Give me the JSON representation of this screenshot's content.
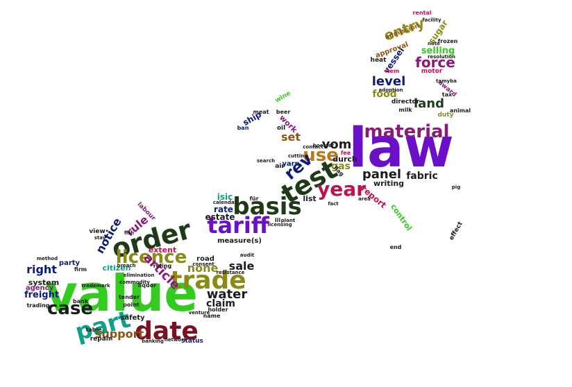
{
  "colors": {
    "green": "#33cc1e",
    "purple": "#6a10c8",
    "dark_green": "#1f3a17",
    "olive": "#8a8a14",
    "navy": "#0e1a78",
    "magenta": "#8a1a78",
    "crimson": "#c0114f",
    "teal": "#0fa08a",
    "brown": "#8a5410",
    "maroon": "#7a1020",
    "dark": "#1c1c1c",
    "blue": "#2a3acc",
    "orange": "#b8781e"
  },
  "words": [
    {
      "text": "value",
      "color": "green"
    },
    {
      "text": "law",
      "color": "purple"
    },
    {
      "text": "tariff",
      "color": "purple"
    },
    {
      "text": "basis",
      "color": "dark_green"
    },
    {
      "text": "test",
      "color": "dark_green"
    },
    {
      "text": "order",
      "color": "dark_green"
    },
    {
      "text": "date",
      "color": "maroon"
    },
    {
      "text": "part",
      "color": "teal"
    },
    {
      "text": "trade",
      "color": "olive"
    },
    {
      "text": "material",
      "color": "magenta"
    },
    {
      "text": "licence",
      "color": "olive"
    },
    {
      "text": "case",
      "color": "dark"
    },
    {
      "text": "year",
      "color": "crimson"
    },
    {
      "text": "use",
      "color": "orange"
    },
    {
      "text": "rev",
      "color": "navy"
    },
    {
      "text": "article",
      "color": "magenta"
    },
    {
      "text": "entry",
      "color": "olive"
    },
    {
      "text": "force",
      "color": "magenta"
    },
    {
      "text": "panel",
      "color": "dark"
    },
    {
      "text": "vom",
      "color": "dark"
    },
    {
      "text": "land",
      "color": "dark_green"
    },
    {
      "text": "level",
      "color": "navy"
    },
    {
      "text": "water",
      "color": "dark"
    },
    {
      "text": "right",
      "color": "navy"
    },
    {
      "text": "rule",
      "color": "magenta"
    },
    {
      "text": "notice",
      "color": "navy"
    },
    {
      "text": "support",
      "color": "brown"
    },
    {
      "text": "none",
      "color": "olive"
    },
    {
      "text": "sale",
      "color": "dark"
    },
    {
      "text": "claim",
      "color": "dark"
    },
    {
      "text": "gas",
      "color": "olive"
    },
    {
      "text": "set",
      "color": "brown"
    },
    {
      "text": "fabric",
      "color": "dark"
    },
    {
      "text": "food",
      "color": "olive"
    },
    {
      "text": "selling",
      "color": "green"
    },
    {
      "text": "freight",
      "color": "navy"
    },
    {
      "text": "vessel",
      "color": "navy"
    },
    {
      "text": "sugar",
      "color": "olive"
    },
    {
      "text": "report",
      "color": "crimson"
    },
    {
      "text": "rate",
      "color": "navy"
    },
    {
      "text": "extent",
      "color": "crimson"
    },
    {
      "text": "citizen",
      "color": "teal"
    },
    {
      "text": "system",
      "color": "dark"
    },
    {
      "text": "agency",
      "color": "magenta"
    },
    {
      "text": "party",
      "color": "navy"
    },
    {
      "text": "ship",
      "color": "navy"
    },
    {
      "text": "work",
      "color": "magenta"
    },
    {
      "text": "isic",
      "color": "teal"
    },
    {
      "text": "estate",
      "color": "dark"
    },
    {
      "text": "writing",
      "color": "dark"
    },
    {
      "text": "list",
      "color": "dark"
    },
    {
      "text": "durch",
      "color": "dark"
    },
    {
      "text": "yarn",
      "color": "navy"
    },
    {
      "text": "approval",
      "color": "brown"
    },
    {
      "text": "admission",
      "color": "brown"
    },
    {
      "text": "heat",
      "color": "dark"
    },
    {
      "text": "safety",
      "color": "dark"
    },
    {
      "text": "measure(s)",
      "color": "dark"
    },
    {
      "text": "road",
      "color": "dark"
    },
    {
      "text": "labour",
      "color": "magenta"
    },
    {
      "text": "award",
      "color": "magenta"
    },
    {
      "text": "director",
      "color": "dark"
    },
    {
      "text": "repair",
      "color": "dark"
    },
    {
      "text": "status",
      "color": "navy"
    },
    {
      "text": "control",
      "color": "green"
    },
    {
      "text": "effect",
      "color": "dark"
    },
    {
      "text": "wine",
      "color": "green"
    },
    {
      "text": "oil",
      "color": "dark"
    },
    {
      "text": "air",
      "color": "dark"
    },
    {
      "text": "motor",
      "color": "crimson"
    },
    {
      "text": "duty",
      "color": "olive"
    },
    {
      "text": "view",
      "color": "dark"
    },
    {
      "text": "tender",
      "color": "dark"
    },
    {
      "text": "liquor",
      "color": "dark"
    },
    {
      "text": "ruling",
      "color": "dark"
    },
    {
      "text": "holder",
      "color": "dark"
    },
    {
      "text": "name",
      "color": "dark"
    },
    {
      "text": "point",
      "color": "dark"
    },
    {
      "text": "trading",
      "color": "dark"
    },
    {
      "text": "flag",
      "color": "dark"
    },
    {
      "text": "meat",
      "color": "dark"
    },
    {
      "text": "ban",
      "color": "navy"
    },
    {
      "text": "milk",
      "color": "dark"
    },
    {
      "text": "animal",
      "color": "dark"
    },
    {
      "text": "item",
      "color": "crimson"
    },
    {
      "text": "rental",
      "color": "crimson"
    },
    {
      "text": "iii",
      "color": "dark"
    },
    {
      "text": "für",
      "color": "dark"
    },
    {
      "text": "end",
      "color": "dark"
    },
    {
      "text": "frozen",
      "color": "dark"
    },
    {
      "text": "fee",
      "color": "crimson"
    },
    {
      "text": "beer",
      "color": "dark"
    },
    {
      "text": "tax",
      "color": "dark"
    },
    {
      "text": "firm",
      "color": "dark"
    },
    {
      "text": "bank",
      "color": "dark"
    },
    {
      "text": "table",
      "color": "dark"
    },
    {
      "text": "fish",
      "color": "dark"
    },
    {
      "text": "stay",
      "color": "dark"
    },
    {
      "text": "breach",
      "color": "dark"
    },
    {
      "text": "commodity",
      "color": "dark"
    },
    {
      "text": "elimination",
      "color": "dark"
    },
    {
      "text": "trademark",
      "color": "dark"
    },
    {
      "text": "venture",
      "color": "dark"
    },
    {
      "text": "banking",
      "color": "dark"
    },
    {
      "text": "consent",
      "color": "dark"
    },
    {
      "text": "resistance",
      "color": "dark"
    },
    {
      "text": "audit",
      "color": "dark"
    },
    {
      "text": "calendar",
      "color": "dark"
    },
    {
      "text": "plant",
      "color": "dark"
    },
    {
      "text": "area",
      "color": "dark"
    },
    {
      "text": "booster",
      "color": "dark"
    },
    {
      "text": "contact",
      "color": "dark"
    },
    {
      "text": "cutting",
      "color": "dark"
    },
    {
      "text": "search",
      "color": "dark"
    },
    {
      "text": "fact",
      "color": "dark"
    },
    {
      "text": "licensing",
      "color": "dark"
    },
    {
      "text": "facility",
      "color": "dark"
    },
    {
      "text": "adoption",
      "color": "dark"
    },
    {
      "text": "tamyba",
      "color": "dark"
    },
    {
      "text": "note",
      "color": "dark"
    },
    {
      "text": "resolution",
      "color": "dark"
    },
    {
      "text": "method",
      "color": "dark"
    },
    {
      "text": "network",
      "color": "dark"
    },
    {
      "text": "pig",
      "color": "dark"
    }
  ]
}
